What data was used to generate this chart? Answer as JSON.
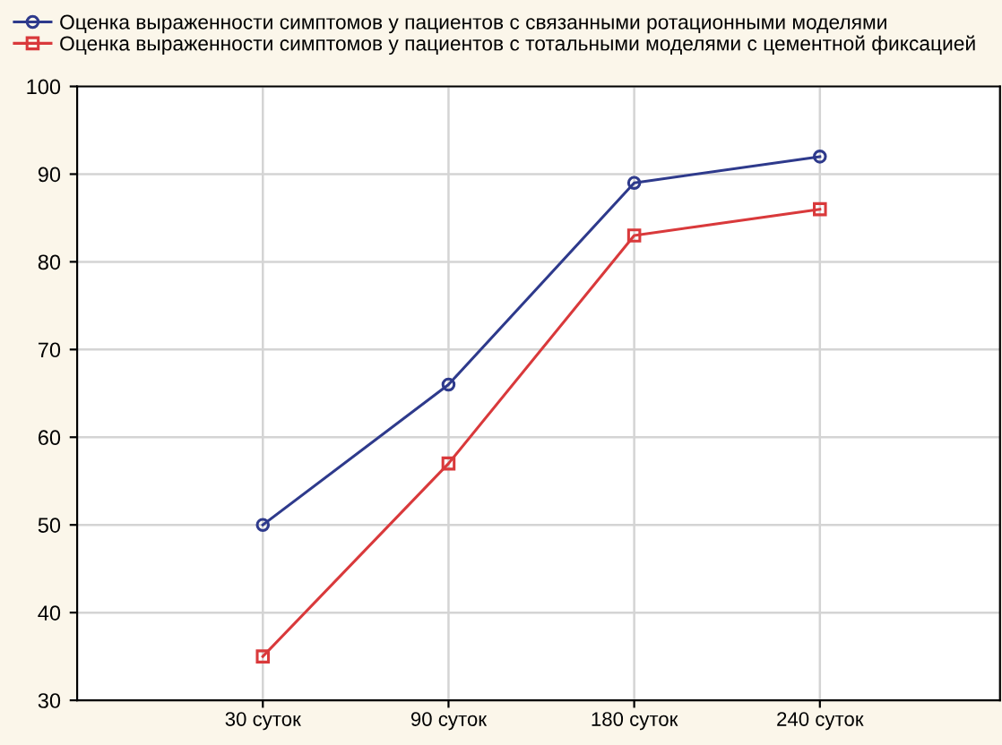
{
  "chart_data": {
    "type": "line",
    "categories": [
      "30 суток",
      "90 суток",
      "180 суток",
      "240 суток"
    ],
    "series": [
      {
        "name": "Оценка выраженности симптомов у пациентов с связанными ротационными моделями",
        "color": "#2e3a8c",
        "marker": "circle",
        "values": [
          50,
          66,
          89,
          92
        ]
      },
      {
        "name": "Оценка выраженности симптомов у пациентов с тотальными моделями с цементной фиксацией",
        "color": "#d9393b",
        "marker": "square",
        "values": [
          35,
          57,
          83,
          86
        ]
      }
    ],
    "ylim": [
      30,
      100
    ],
    "yticks": [
      30,
      40,
      50,
      60,
      70,
      80,
      90,
      100
    ],
    "grid": true,
    "legend": "top",
    "line_style": "solid"
  }
}
